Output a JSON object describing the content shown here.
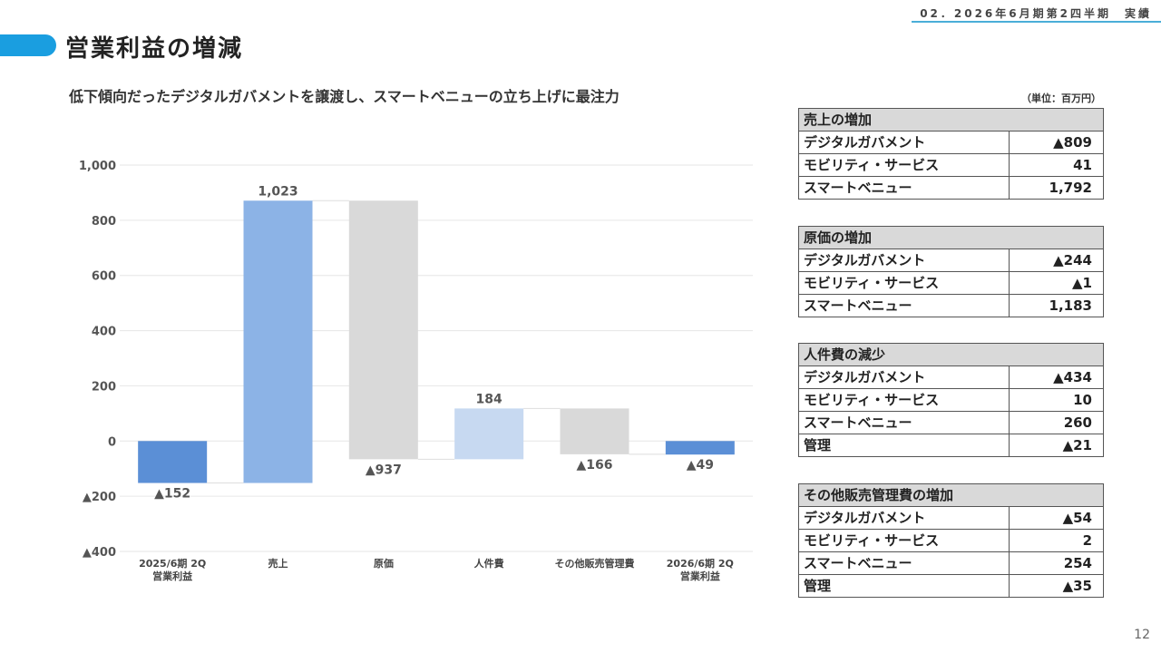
{
  "header": {
    "section": "02．2026年6月期第2四半期　実績"
  },
  "page": {
    "title": "営業利益の増減",
    "subtitle": "低下傾向だったデジタルガバメントを譲渡し、スマートベニューの立ち上げに最注力",
    "unit": "（単位：百万円）",
    "number": "12"
  },
  "colors": {
    "accent": "#1a9ee0",
    "bar_dark": "#5b8fd6",
    "bar_light": "#8cb3e6",
    "bar_pale": "#c7d9f1",
    "bar_gray": "#d9d9d9"
  },
  "chart_data": {
    "type": "bar",
    "subtype": "waterfall",
    "ylim": [
      -400,
      1000
    ],
    "yticks": [
      -400,
      -200,
      0,
      200,
      400,
      600,
      800,
      1000
    ],
    "ytick_labels": [
      "▲400",
      "▲200",
      "0",
      "200",
      "400",
      "600",
      "800",
      "1,000"
    ],
    "grid": true,
    "bars": [
      {
        "category": "2025/6期 2Q\n営業利益",
        "start": 0,
        "end": -152,
        "label": "▲152",
        "color": "#5b8fd6"
      },
      {
        "category": "売上",
        "start": -152,
        "end": 871,
        "label": "1,023",
        "color": "#8cb3e6"
      },
      {
        "category": "原価",
        "start": 871,
        "end": -66,
        "label": "▲937",
        "color": "#d9d9d9"
      },
      {
        "category": "人件費",
        "start": -66,
        "end": 118,
        "label": "184",
        "color": "#c7d9f1"
      },
      {
        "category": "その他販売管理費",
        "start": 118,
        "end": -48,
        "label": "▲166",
        "color": "#d9d9d9"
      },
      {
        "category": "2026/6期 2Q\n営業利益",
        "start": 0,
        "end": -49,
        "label": "▲49",
        "color": "#5b8fd6"
      }
    ]
  },
  "tables": [
    {
      "title": "売上の増加",
      "rows": [
        [
          "デジタルガバメント",
          "▲809"
        ],
        [
          "モビリティ・サービス",
          "41"
        ],
        [
          "スマートベニュー",
          "1,792"
        ]
      ]
    },
    {
      "title": "原価の増加",
      "rows": [
        [
          "デジタルガバメント",
          "▲244"
        ],
        [
          "モビリティ・サービス",
          "▲1"
        ],
        [
          "スマートベニュー",
          "1,183"
        ]
      ]
    },
    {
      "title": "人件費の減少",
      "rows": [
        [
          "デジタルガバメント",
          "▲434"
        ],
        [
          "モビリティ・サービス",
          "10"
        ],
        [
          "スマートベニュー",
          "260"
        ],
        [
          "管理",
          "▲21"
        ]
      ]
    },
    {
      "title": "その他販売管理費の増加",
      "rows": [
        [
          "デジタルガバメント",
          "▲54"
        ],
        [
          "モビリティ・サービス",
          "2"
        ],
        [
          "スマートベニュー",
          "254"
        ],
        [
          "管理",
          "▲35"
        ]
      ]
    }
  ]
}
